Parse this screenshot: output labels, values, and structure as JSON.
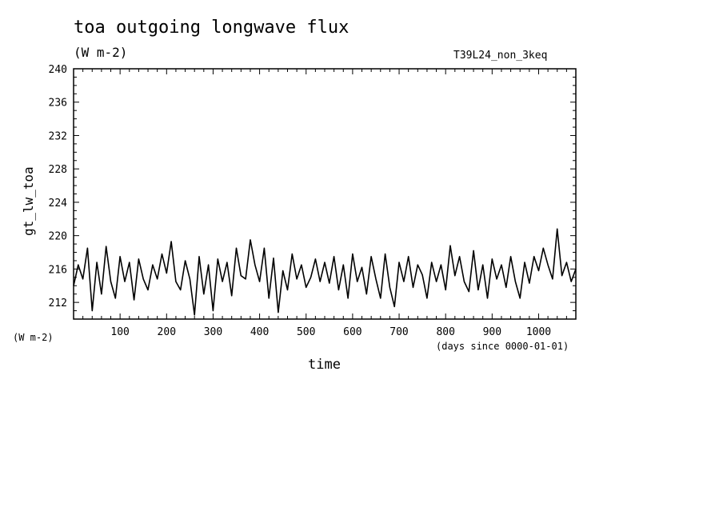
{
  "chart_data": {
    "type": "line",
    "title": "toa outgoing longwave flux",
    "subtitle": "(W m-2)",
    "run_label": "T39L24_non_3keq",
    "ylabel": "gt_lw_toa",
    "y_unit": "(W m-2)",
    "xlabel": "time",
    "x_unit": "(days since 0000-01-01)",
    "xlim": [
      0,
      1080
    ],
    "ylim": [
      210,
      240
    ],
    "x_ticks": [
      100,
      200,
      300,
      400,
      500,
      600,
      700,
      800,
      900,
      1000
    ],
    "y_ticks": [
      212,
      216,
      220,
      224,
      228,
      232,
      236,
      240
    ],
    "grid": false,
    "line_color": "#000000",
    "series": [
      {
        "x": [
          0,
          10,
          20,
          30,
          40,
          50,
          60,
          70,
          80,
          90,
          100,
          110,
          120,
          130,
          140,
          150,
          160,
          170,
          180,
          190,
          200,
          210,
          220,
          230,
          240,
          250,
          260,
          270,
          280,
          290,
          300,
          310,
          320,
          330,
          340,
          350,
          360,
          370,
          380,
          390,
          400,
          410,
          420,
          430,
          440,
          450,
          460,
          470,
          480,
          490,
          500,
          510,
          520,
          530,
          540,
          550,
          560,
          570,
          580,
          590,
          600,
          610,
          620,
          630,
          640,
          650,
          660,
          670,
          680,
          690,
          700,
          710,
          720,
          730,
          740,
          750,
          760,
          770,
          780,
          790,
          800,
          810,
          820,
          830,
          840,
          850,
          860,
          870,
          880,
          890,
          900,
          910,
          920,
          930,
          940,
          950,
          960,
          970,
          980,
          990,
          1000,
          1010,
          1020,
          1030,
          1040,
          1050,
          1060,
          1070,
          1080
        ],
        "y": [
          214,
          216.5,
          214.8,
          218.5,
          211,
          216.8,
          213,
          218.7,
          214.5,
          212.5,
          217.5,
          214.5,
          216.8,
          212.3,
          217.2,
          214.8,
          213.5,
          216.5,
          214.8,
          217.8,
          215.5,
          219.3,
          214.5,
          213.5,
          217,
          214.8,
          210.5,
          217.5,
          213,
          216.5,
          211,
          217.2,
          214.5,
          216.8,
          212.8,
          218.5,
          215.2,
          214.8,
          219.5,
          216.5,
          214.5,
          218.5,
          212.5,
          217.3,
          210.8,
          215.8,
          213.5,
          217.8,
          214.8,
          216.5,
          213.8,
          215,
          217.2,
          214.5,
          216.8,
          214.3,
          217.5,
          213.5,
          216.5,
          212.5,
          217.8,
          214.5,
          216.2,
          213,
          217.5,
          214.8,
          212.5,
          217.8,
          213.8,
          211.5,
          216.8,
          214.5,
          217.5,
          213.8,
          216.5,
          215.3,
          212.5,
          216.8,
          214.5,
          216.5,
          213.5,
          218.8,
          215.2,
          217.5,
          214.5,
          213.3,
          218.2,
          213.5,
          216.5,
          212.5,
          217.2,
          214.8,
          216.5,
          213.8,
          217.5,
          214.5,
          212.5,
          216.8,
          214.3,
          217.5,
          215.8,
          218.5,
          216.5,
          214.8,
          220.8,
          215.2,
          216.8,
          214.5,
          216
        ]
      }
    ]
  }
}
